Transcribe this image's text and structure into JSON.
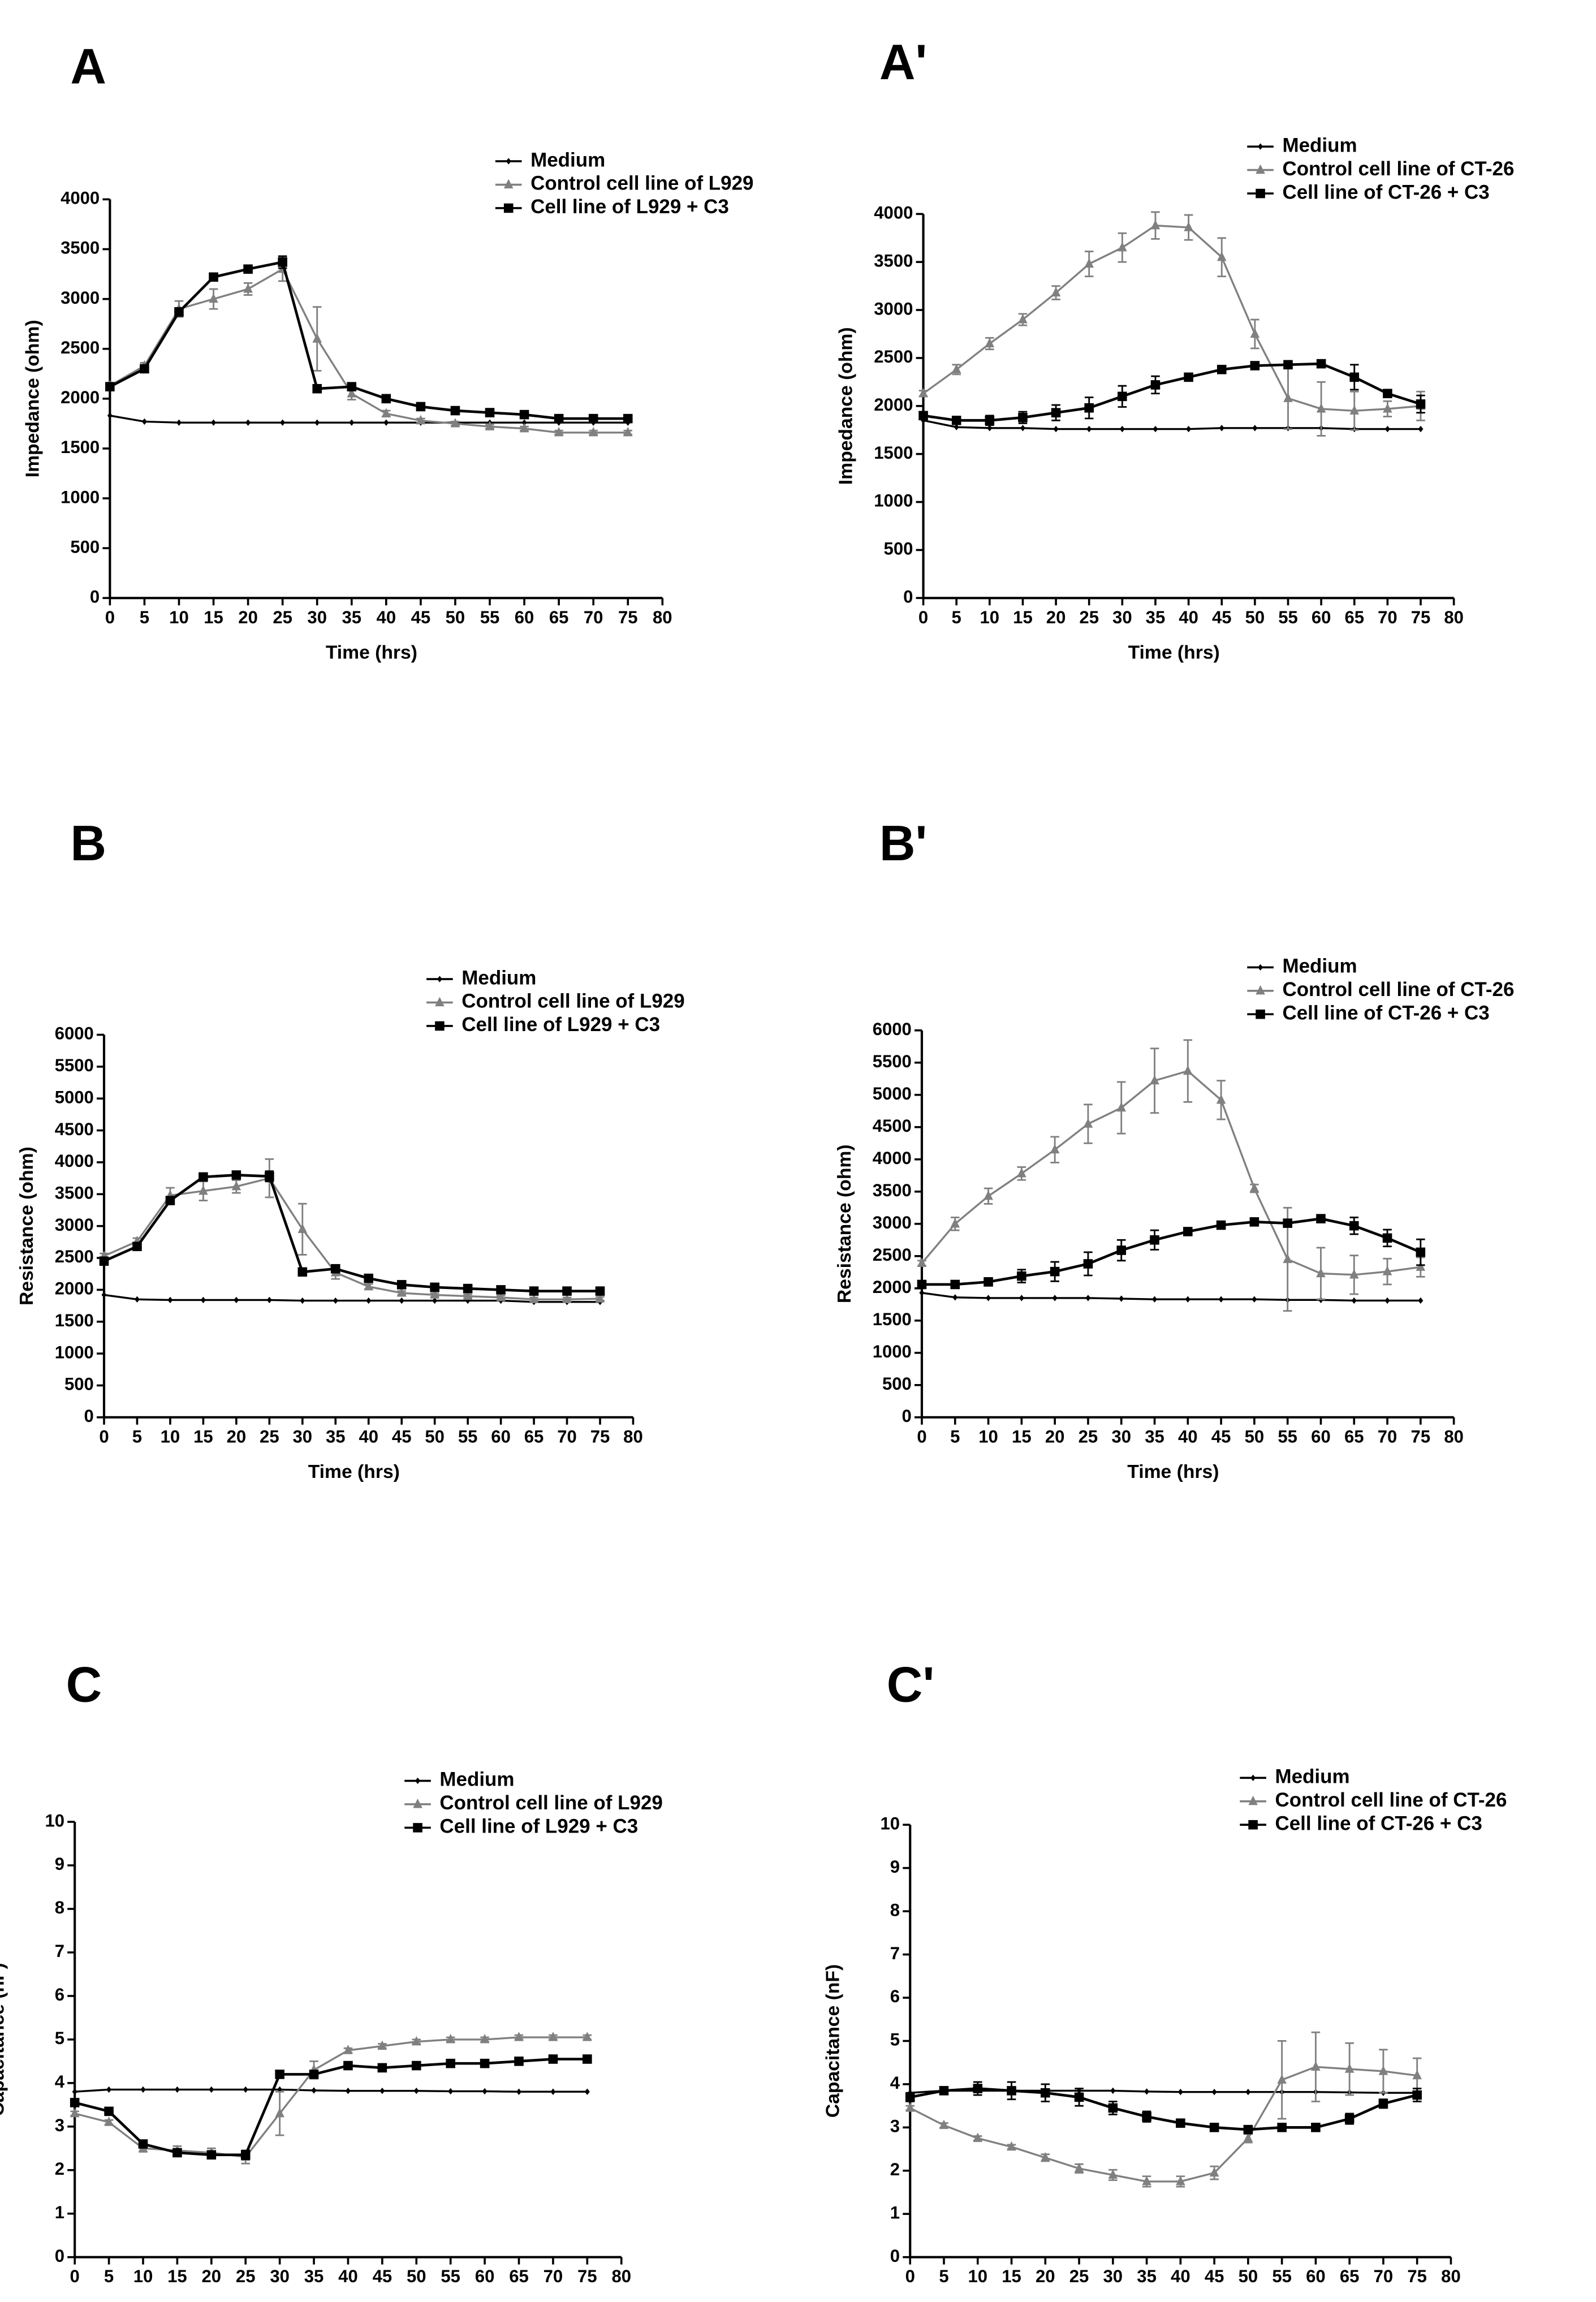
{
  "chart_data": [
    {
      "type": "line",
      "title": "A",
      "xlabel": "Time (hrs)",
      "ylabel": "Impedance (ohm)",
      "x": [
        0,
        5,
        10,
        15,
        20,
        25,
        30,
        35,
        40,
        45,
        50,
        55,
        60,
        65,
        70,
        75
      ],
      "xlim": [
        0,
        80
      ],
      "xticks": [
        0,
        5,
        10,
        15,
        20,
        25,
        30,
        35,
        40,
        45,
        50,
        55,
        60,
        65,
        70,
        75,
        80
      ],
      "ylim": [
        0,
        4000
      ],
      "yticks": [
        0,
        500,
        1000,
        1500,
        2000,
        2500,
        3000,
        3500,
        4000
      ],
      "series": [
        {
          "name": "Medium",
          "color": "#000000",
          "marker": "diamond",
          "values": [
            1830,
            1770,
            1760,
            1760,
            1760,
            1760,
            1760,
            1760,
            1760,
            1760,
            1760,
            1760,
            1760,
            1760,
            1760,
            1760
          ]
        },
        {
          "name": "Control cell line of L929",
          "color": "#808080",
          "marker": "triangle",
          "values": [
            2130,
            2330,
            2900,
            3000,
            3100,
            3300,
            2600,
            2050,
            1850,
            1780,
            1750,
            1720,
            1700,
            1660,
            1660,
            1660
          ],
          "errors": [
            30,
            30,
            80,
            100,
            60,
            120,
            320,
            60,
            30,
            20,
            20,
            20,
            20,
            20,
            20,
            20
          ]
        },
        {
          "name": "Cell line of L929 + C3",
          "color": "#000000",
          "marker": "square",
          "values": [
            2120,
            2300,
            2870,
            3220,
            3300,
            3370,
            2100,
            2120,
            2000,
            1920,
            1880,
            1860,
            1840,
            1800,
            1800,
            1800
          ],
          "errors": [
            30,
            30,
            40,
            30,
            30,
            60,
            20,
            30,
            20,
            20,
            20,
            20,
            20,
            20,
            20,
            20
          ]
        }
      ]
    },
    {
      "type": "line",
      "title": "A'",
      "xlabel": "Time (hrs)",
      "ylabel": "Impedance (ohm)",
      "x": [
        0,
        5,
        10,
        15,
        20,
        25,
        30,
        35,
        40,
        45,
        50,
        55,
        60,
        65,
        70,
        75
      ],
      "xlim": [
        0,
        80
      ],
      "xticks": [
        0,
        5,
        10,
        15,
        20,
        25,
        30,
        35,
        40,
        45,
        50,
        55,
        60,
        65,
        70,
        75,
        80
      ],
      "ylim": [
        0,
        4000
      ],
      "yticks": [
        0,
        500,
        1000,
        1500,
        2000,
        2500,
        3000,
        3500,
        4000
      ],
      "series": [
        {
          "name": "Medium",
          "color": "#000000",
          "marker": "diamond",
          "values": [
            1850,
            1780,
            1770,
            1770,
            1760,
            1760,
            1760,
            1760,
            1760,
            1770,
            1770,
            1770,
            1770,
            1760,
            1760,
            1760
          ]
        },
        {
          "name": "Control cell line of CT-26",
          "color": "#808080",
          "marker": "triangle",
          "values": [
            2130,
            2380,
            2650,
            2900,
            3180,
            3480,
            3650,
            3880,
            3860,
            3550,
            2750,
            2080,
            1970,
            1950,
            1970,
            2000
          ],
          "errors": [
            30,
            50,
            60,
            60,
            70,
            130,
            150,
            140,
            130,
            200,
            150,
            320,
            280,
            200,
            80,
            150
          ]
        },
        {
          "name": "Cell line of CT-26 + C3",
          "color": "#000000",
          "marker": "square",
          "values": [
            1900,
            1850,
            1850,
            1880,
            1930,
            1980,
            2100,
            2220,
            2300,
            2380,
            2420,
            2430,
            2440,
            2300,
            2130,
            2020
          ],
          "errors": [
            40,
            40,
            50,
            60,
            80,
            110,
            110,
            90,
            30,
            20,
            20,
            20,
            20,
            130,
            30,
            90
          ]
        }
      ]
    },
    {
      "type": "line",
      "title": "B",
      "xlabel": "Time (hrs)",
      "ylabel": "Resistance (ohm)",
      "x": [
        0,
        5,
        10,
        15,
        20,
        25,
        30,
        35,
        40,
        45,
        50,
        55,
        60,
        65,
        70,
        75
      ],
      "xlim": [
        0,
        80
      ],
      "xticks": [
        0,
        5,
        10,
        15,
        20,
        25,
        30,
        35,
        40,
        45,
        50,
        55,
        60,
        65,
        70,
        75,
        80
      ],
      "ylim": [
        0,
        6000
      ],
      "yticks": [
        0,
        500,
        1000,
        1500,
        2000,
        2500,
        3000,
        3500,
        4000,
        4500,
        5000,
        5500,
        6000
      ],
      "series": [
        {
          "name": "Medium",
          "color": "#000000",
          "marker": "diamond",
          "values": [
            1920,
            1850,
            1840,
            1840,
            1840,
            1840,
            1830,
            1830,
            1830,
            1830,
            1830,
            1830,
            1830,
            1810,
            1810,
            1810
          ]
        },
        {
          "name": "Control cell line of L929",
          "color": "#808080",
          "marker": "triangle",
          "values": [
            2530,
            2760,
            3480,
            3550,
            3620,
            3750,
            2950,
            2270,
            2050,
            1950,
            1920,
            1900,
            1880,
            1850,
            1850,
            1860
          ],
          "errors": [
            40,
            50,
            120,
            150,
            100,
            300,
            400,
            100,
            40,
            30,
            30,
            30,
            30,
            30,
            30,
            30
          ]
        },
        {
          "name": "Cell line of L929 + C3",
          "color": "#000000",
          "marker": "square",
          "values": [
            2450,
            2680,
            3400,
            3770,
            3800,
            3780,
            2280,
            2330,
            2180,
            2080,
            2040,
            2020,
            2000,
            1980,
            1980,
            1980
          ],
          "errors": [
            40,
            40,
            50,
            40,
            40,
            80,
            30,
            40,
            30,
            30,
            30,
            30,
            30,
            30,
            30,
            30
          ]
        }
      ]
    },
    {
      "type": "line",
      "title": "B'",
      "xlabel": "Time (hrs)",
      "ylabel": "Resistance (ohm)",
      "x": [
        0,
        5,
        10,
        15,
        20,
        25,
        30,
        35,
        40,
        45,
        50,
        55,
        60,
        65,
        70,
        75
      ],
      "xlim": [
        0,
        80
      ],
      "xticks": [
        0,
        5,
        10,
        15,
        20,
        25,
        30,
        35,
        40,
        45,
        50,
        55,
        60,
        65,
        70,
        75,
        80
      ],
      "ylim": [
        0,
        6000
      ],
      "yticks": [
        0,
        500,
        1000,
        1500,
        2000,
        2500,
        3000,
        3500,
        4000,
        4500,
        5000,
        5500,
        6000
      ],
      "series": [
        {
          "name": "Medium",
          "color": "#000000",
          "marker": "diamond",
          "values": [
            1930,
            1860,
            1850,
            1850,
            1850,
            1850,
            1840,
            1830,
            1830,
            1830,
            1830,
            1820,
            1820,
            1810,
            1810,
            1810
          ]
        },
        {
          "name": "Control cell line of CT-26",
          "color": "#808080",
          "marker": "triangle",
          "values": [
            2390,
            3000,
            3430,
            3780,
            4150,
            4550,
            4800,
            5220,
            5370,
            4920,
            3550,
            2450,
            2230,
            2210,
            2260,
            2330
          ],
          "errors": [
            40,
            100,
            120,
            100,
            200,
            300,
            400,
            500,
            480,
            300,
            60,
            800,
            400,
            300,
            200,
            150
          ]
        },
        {
          "name": "Cell line of CT-26 + C3",
          "color": "#000000",
          "marker": "square",
          "values": [
            2060,
            2060,
            2100,
            2190,
            2260,
            2380,
            2590,
            2750,
            2880,
            2980,
            3030,
            3010,
            3080,
            2970,
            2780,
            2560
          ],
          "errors": [
            40,
            40,
            60,
            100,
            150,
            180,
            160,
            150,
            40,
            30,
            30,
            30,
            40,
            130,
            130,
            200
          ]
        }
      ]
    },
    {
      "type": "line",
      "title": "C",
      "xlabel": "Time (hrs)",
      "ylabel": "Capacitance (nF)",
      "x": [
        0,
        5,
        10,
        15,
        20,
        25,
        30,
        35,
        40,
        45,
        50,
        55,
        60,
        65,
        70,
        75
      ],
      "xlim": [
        0,
        80
      ],
      "xticks": [
        0,
        5,
        10,
        15,
        20,
        25,
        30,
        35,
        40,
        45,
        50,
        55,
        60,
        65,
        70,
        75,
        80
      ],
      "ylim": [
        0,
        10
      ],
      "yticks": [
        0,
        1,
        2,
        3,
        4,
        5,
        6,
        7,
        8,
        9,
        10
      ],
      "series": [
        {
          "name": "Medium",
          "color": "#000000",
          "marker": "diamond",
          "values": [
            3.8,
            3.85,
            3.85,
            3.85,
            3.85,
            3.85,
            3.85,
            3.83,
            3.82,
            3.82,
            3.82,
            3.81,
            3.81,
            3.8,
            3.8,
            3.8
          ]
        },
        {
          "name": "Control cell line of L929",
          "color": "#808080",
          "marker": "triangle",
          "values": [
            3.3,
            3.1,
            2.5,
            2.45,
            2.4,
            2.3,
            3.3,
            4.3,
            4.75,
            4.85,
            4.95,
            5.0,
            5.0,
            5.05,
            5.05,
            5.05
          ],
          "errors": [
            0.05,
            0.05,
            0.08,
            0.1,
            0.1,
            0.15,
            0.5,
            0.2,
            0.05,
            0.05,
            0.05,
            0.05,
            0.05,
            0.05,
            0.05,
            0.05
          ]
        },
        {
          "name": "Cell line of L929 + C3",
          "color": "#000000",
          "marker": "square",
          "values": [
            3.55,
            3.35,
            2.6,
            2.4,
            2.35,
            2.35,
            4.2,
            4.2,
            4.4,
            4.35,
            4.4,
            4.45,
            4.45,
            4.5,
            4.55,
            4.55
          ],
          "errors": [
            0.05,
            0.05,
            0.08,
            0.08,
            0.08,
            0.1,
            0.05,
            0.08,
            0.05,
            0.05,
            0.05,
            0.05,
            0.05,
            0.05,
            0.05,
            0.05
          ]
        }
      ]
    },
    {
      "type": "line",
      "title": "C'",
      "xlabel": "Time (hrs)",
      "ylabel": "Capacitance (nF)",
      "x": [
        0,
        5,
        10,
        15,
        20,
        25,
        30,
        35,
        40,
        45,
        50,
        55,
        60,
        65,
        70,
        75
      ],
      "xlim": [
        0,
        80
      ],
      "xticks": [
        0,
        5,
        10,
        15,
        20,
        25,
        30,
        35,
        40,
        45,
        50,
        55,
        60,
        65,
        70,
        75,
        80
      ],
      "ylim": [
        0,
        10
      ],
      "yticks": [
        0,
        1,
        2,
        3,
        4,
        5,
        6,
        7,
        8,
        9,
        10
      ],
      "series": [
        {
          "name": "Medium",
          "color": "#000000",
          "marker": "diamond",
          "values": [
            3.8,
            3.85,
            3.85,
            3.85,
            3.85,
            3.85,
            3.85,
            3.83,
            3.82,
            3.82,
            3.82,
            3.82,
            3.82,
            3.81,
            3.8,
            3.8
          ]
        },
        {
          "name": "Control cell line of CT-26",
          "color": "#808080",
          "marker": "triangle",
          "values": [
            3.45,
            3.05,
            2.75,
            2.55,
            2.3,
            2.05,
            1.9,
            1.75,
            1.75,
            1.95,
            2.75,
            4.1,
            4.4,
            4.35,
            4.3,
            4.2
          ],
          "errors": [
            0.05,
            0.05,
            0.05,
            0.05,
            0.08,
            0.1,
            0.12,
            0.12,
            0.12,
            0.15,
            0.1,
            0.9,
            0.8,
            0.6,
            0.5,
            0.4
          ]
        },
        {
          "name": "Cell line of CT-26 + C3",
          "color": "#000000",
          "marker": "square",
          "values": [
            3.7,
            3.85,
            3.9,
            3.85,
            3.8,
            3.7,
            3.45,
            3.25,
            3.1,
            3.0,
            2.95,
            3.0,
            3.0,
            3.2,
            3.55,
            3.75
          ],
          "errors": [
            0.1,
            0.08,
            0.15,
            0.2,
            0.2,
            0.2,
            0.15,
            0.12,
            0.05,
            0.05,
            0.05,
            0.05,
            0.05,
            0.12,
            0.1,
            0.15
          ]
        }
      ]
    }
  ]
}
